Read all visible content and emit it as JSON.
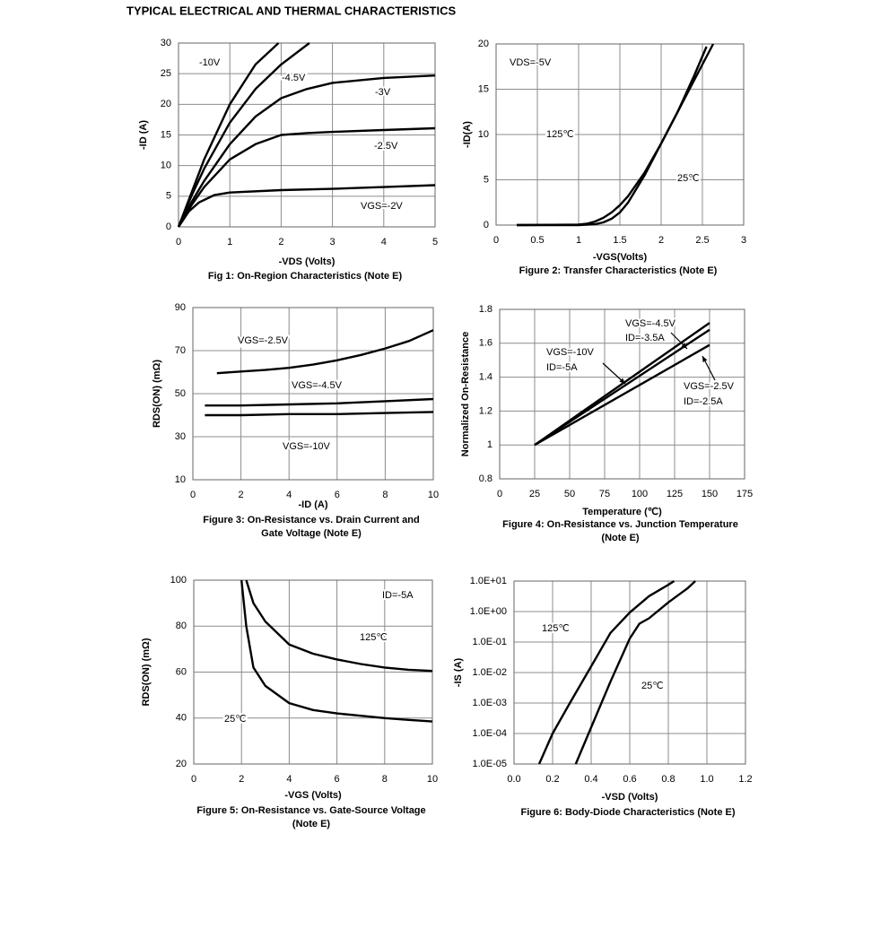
{
  "title": "TYPICAL ELECTRICAL AND THERMAL CHARACTERISTICS",
  "chart_data": [
    {
      "type": "line",
      "title": [
        "Fig 1: On-Region Characteristics (Note E)"
      ],
      "x_label": "-VDS (Volts)",
      "y_label": "-ID (A)",
      "xlim": [
        0,
        5
      ],
      "xticks": [
        0,
        1,
        2,
        3,
        4,
        5
      ],
      "ylim": [
        0,
        30
      ],
      "yticks": [
        0,
        5,
        10,
        15,
        20,
        25,
        30
      ],
      "grid": true,
      "series": [
        {
          "name": "-10V",
          "color": "#000000",
          "x": [
            0,
            0.25,
            0.5,
            1,
            1.5,
            1.95
          ],
          "values": [
            0,
            5.5,
            11,
            20,
            26.5,
            30
          ]
        },
        {
          "name": "-4.5V",
          "color": "#000000",
          "x": [
            0,
            0.25,
            0.5,
            1,
            1.5,
            2,
            2.55
          ],
          "values": [
            0,
            5,
            9.5,
            17,
            22.5,
            26.5,
            30
          ]
        },
        {
          "name": "-3V",
          "color": "#000000",
          "x": [
            0,
            0.25,
            0.5,
            1,
            1.5,
            2,
            2.5,
            3,
            4,
            5
          ],
          "values": [
            0,
            4,
            7.5,
            13.5,
            18,
            21,
            22.5,
            23.5,
            24.3,
            24.7
          ]
        },
        {
          "name": "-2.5V",
          "color": "#000000",
          "x": [
            0,
            0.25,
            0.5,
            1,
            1.5,
            2,
            2.5,
            3,
            4,
            5
          ],
          "values": [
            0,
            3.5,
            6.5,
            11,
            13.5,
            15,
            15.3,
            15.5,
            15.8,
            16.1
          ]
        },
        {
          "name": "VGS=-2V",
          "color": "#000000",
          "x": [
            0,
            0.2,
            0.4,
            0.7,
            1,
            2,
            3,
            4,
            5
          ],
          "values": [
            0,
            2.5,
            4,
            5.2,
            5.6,
            6,
            6.2,
            6.5,
            6.8
          ]
        }
      ]
    },
    {
      "type": "line",
      "title": [
        "Figure 2: Transfer Characteristics (Note E)"
      ],
      "x_label": "-VGS(Volts)",
      "y_label": "-ID(A)",
      "annotations": [
        "VDS=-5V"
      ],
      "xlim": [
        0,
        3
      ],
      "xticks": [
        0,
        0.5,
        1,
        1.5,
        2,
        2.5,
        3
      ],
      "ylim": [
        0,
        20
      ],
      "yticks": [
        0,
        5,
        10,
        15,
        20
      ],
      "grid": true,
      "series": [
        {
          "name": "125℃",
          "color": "#000000",
          "x": [
            0.25,
            1,
            1.1,
            1.2,
            1.3,
            1.4,
            1.5,
            1.6,
            1.8,
            2,
            2.2,
            2.4,
            2.55
          ],
          "values": [
            0,
            0.05,
            0.15,
            0.4,
            0.8,
            1.4,
            2.2,
            3.2,
            5.8,
            9,
            12.5,
            16.5,
            19.7
          ]
        },
        {
          "name": "25℃",
          "color": "#000000",
          "x": [
            0.25,
            1,
            1.2,
            1.3,
            1.4,
            1.5,
            1.6,
            1.8,
            2,
            2.2,
            2.4,
            2.63
          ],
          "values": [
            0,
            0,
            0.1,
            0.3,
            0.7,
            1.4,
            2.5,
            5.5,
            9,
            12.5,
            16,
            20
          ]
        }
      ]
    },
    {
      "type": "line",
      "title": [
        "Figure 3: On-Resistance vs. Drain Current and",
        "Gate Voltage (Note E)"
      ],
      "x_label": "-ID (A)",
      "y_label": "RDS(ON) (mΩ)",
      "xlim": [
        0,
        10
      ],
      "xticks": [
        0,
        2,
        4,
        6,
        8,
        10
      ],
      "ylim": [
        10,
        90
      ],
      "yticks": [
        10,
        30,
        50,
        70,
        90
      ],
      "grid": true,
      "series": [
        {
          "name": "VGS=-2.5V",
          "color": "#000000",
          "x": [
            1,
            2,
            3,
            4,
            5,
            6,
            7,
            8,
            9,
            10
          ],
          "values": [
            59.5,
            60.3,
            61,
            62,
            63.5,
            65.5,
            68,
            71,
            74.5,
            79.5
          ]
        },
        {
          "name": "VGS=-4.5V",
          "color": "#000000",
          "x": [
            0.5,
            2,
            4,
            6,
            8,
            10
          ],
          "values": [
            44.5,
            44.5,
            45,
            45.5,
            46.5,
            47.5
          ]
        },
        {
          "name": "VGS=-10V",
          "color": "#000000",
          "x": [
            0.5,
            2,
            4,
            6,
            8,
            10
          ],
          "values": [
            40,
            40,
            40.5,
            40.5,
            41,
            41.5
          ]
        }
      ]
    },
    {
      "type": "line",
      "title": [
        "Figure 4: On-Resistance vs. Junction Temperature",
        "(Note E)"
      ],
      "x_label": "Temperature (℃)",
      "y_label": "Normalized On-Resistance",
      "xlim": [
        0,
        175
      ],
      "xticks": [
        0,
        25,
        50,
        75,
        100,
        125,
        150,
        175
      ],
      "ylim": [
        0.8,
        1.8
      ],
      "yticks": [
        0.8,
        1,
        1.2,
        1.4,
        1.6,
        1.8
      ],
      "grid": true,
      "series": [
        {
          "name": "VGS=-4.5V",
          "note": "ID=-3.5A",
          "color": "#000000",
          "x": [
            25,
            150
          ],
          "values": [
            1,
            1.72
          ]
        },
        {
          "name": "VGS=-10V",
          "note": "ID=-5A",
          "color": "#000000",
          "x": [
            25,
            150
          ],
          "values": [
            1,
            1.68
          ]
        },
        {
          "name": "VGS=-2.5V",
          "note": "ID=-2.5A",
          "color": "#000000",
          "x": [
            25,
            150
          ],
          "values": [
            1,
            1.59
          ]
        }
      ]
    },
    {
      "type": "line",
      "title": [
        "Figure 5: On-Resistance vs. Gate-Source Voltage",
        "(Note E)"
      ],
      "x_label": "-VGS (Volts)",
      "y_label": "RDS(ON) (mΩ)",
      "annotations": [
        "ID=-5A"
      ],
      "xlim": [
        0,
        10
      ],
      "xticks": [
        0,
        2,
        4,
        6,
        8,
        10
      ],
      "ylim": [
        20,
        100
      ],
      "yticks": [
        20,
        40,
        60,
        80,
        100
      ],
      "grid": true,
      "series": [
        {
          "name": "125℃",
          "color": "#000000",
          "x": [
            2.2,
            2.5,
            3,
            4,
            5,
            6,
            7,
            8,
            9,
            10
          ],
          "values": [
            100,
            90,
            82,
            72,
            68,
            65.5,
            63.5,
            62,
            61,
            60.5
          ]
        },
        {
          "name": "25℃",
          "color": "#000000",
          "x": [
            2,
            2.2,
            2.5,
            3,
            4,
            5,
            6,
            7,
            8,
            9,
            10
          ],
          "values": [
            100,
            80,
            62,
            54,
            46.5,
            43.5,
            42,
            41,
            40,
            39.2,
            38.5
          ]
        }
      ]
    },
    {
      "type": "line",
      "title": [
        "Figure 6: Body-Diode Characteristics (Note E)"
      ],
      "x_label": "-VSD (Volts)",
      "y_label": "-IS (A)",
      "log_y": true,
      "xlim": [
        0,
        1.2
      ],
      "xticks": [
        {
          "value": 0,
          "label": "0.0"
        },
        0.2,
        0.4,
        0.6,
        0.8,
        {
          "value": 1,
          "label": "1.0"
        },
        1.2
      ],
      "ylim": [
        1e-05,
        10
      ],
      "yticks": [
        {
          "value": 1e-05,
          "label": "1.0E-05"
        },
        {
          "value": 0.0001,
          "label": "1.0E-04"
        },
        {
          "value": 0.001,
          "label": "1.0E-03"
        },
        {
          "value": 0.01,
          "label": "1.0E-02"
        },
        {
          "value": 0.1,
          "label": "1.0E-01"
        },
        {
          "value": 1,
          "label": "1.0E+00"
        },
        {
          "value": 10,
          "label": "1.0E+01"
        }
      ],
      "grid": true,
      "series": [
        {
          "name": "125℃",
          "color": "#000000",
          "x": [
            0.13,
            0.2,
            0.3,
            0.4,
            0.5,
            0.6,
            0.7,
            0.8,
            0.83
          ],
          "values": [
            1e-05,
            0.0001,
            0.0013,
            0.016,
            0.2,
            0.93,
            3.2,
            7.6,
            10
          ]
        },
        {
          "name": "25℃",
          "color": "#000000",
          "x": [
            0.32,
            0.4,
            0.5,
            0.6,
            0.65,
            0.7,
            0.8,
            0.9,
            0.94
          ],
          "values": [
            1e-05,
            0.00016,
            0.005,
            0.13,
            0.4,
            0.6,
            2,
            5.8,
            10
          ]
        }
      ]
    }
  ]
}
